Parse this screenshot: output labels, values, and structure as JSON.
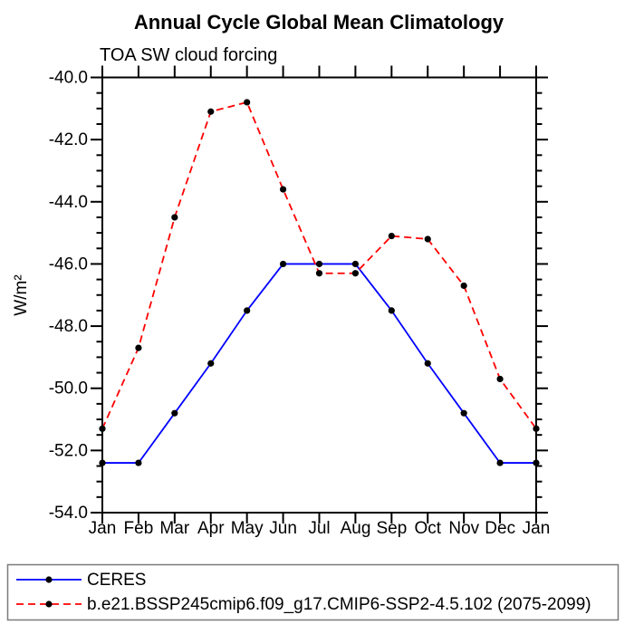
{
  "chart_data": {
    "type": "line",
    "title": "Annual Cycle Global Mean Climatology",
    "subtitle": "TOA SW cloud forcing",
    "ylabel": "W/m²",
    "xlabel": "",
    "categories": [
      "Jan",
      "Feb",
      "Mar",
      "Apr",
      "May",
      "Jun",
      "Jul",
      "Aug",
      "Sep",
      "Oct",
      "Nov",
      "Dec",
      "Jan"
    ],
    "y_tick_labels": [
      "-40.0",
      "-42.0",
      "-44.0",
      "-46.0",
      "-48.0",
      "-50.0",
      "-52.0",
      "-54.0"
    ],
    "ylim": [
      -40.0,
      -54.0
    ],
    "y_major_step": 2.0,
    "y_minor_step": 0.5,
    "grid": false,
    "legend_position": "bottom",
    "axis_color": "#000000",
    "marker": "filled-circle",
    "series": [
      {
        "name": "CERES",
        "color": "#0000ff",
        "line_style": "solid",
        "marker_color": "#000000",
        "values": [
          -52.4,
          -52.4,
          -50.8,
          -49.2,
          -47.5,
          -46.0,
          -46.0,
          -46.0,
          -47.5,
          -49.2,
          -50.8,
          -52.4,
          -52.4
        ]
      },
      {
        "name": "b.e21.BSSP245cmip6.f09_g17.CMIP6-SSP2-4.5.102 (2075-2099)",
        "color": "#ff0000",
        "line_style": "dashed",
        "marker_color": "#000000",
        "values": [
          -51.3,
          -48.7,
          -44.5,
          -41.1,
          -40.8,
          -43.6,
          -46.3,
          -46.3,
          -45.1,
          -45.2,
          -46.7,
          -49.7,
          -51.3
        ]
      }
    ]
  }
}
